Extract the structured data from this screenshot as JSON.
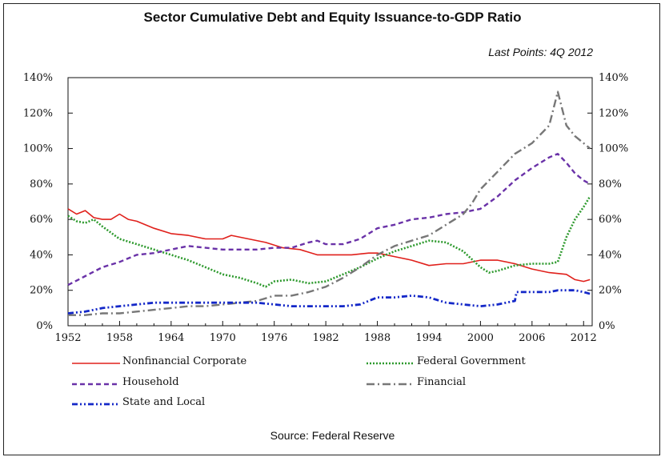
{
  "chart_data": {
    "type": "line",
    "title": "Sector Cumulative Debt and Equity Issuance-to-GDP Ratio",
    "subtitle": "Last Points: 4Q 2012",
    "source": "Source: Federal Reserve",
    "xlim": [
      1952,
      2013
    ],
    "ylim": [
      0,
      140
    ],
    "x_ticks": [
      "1952",
      "1958",
      "1964",
      "1970",
      "1976",
      "1982",
      "1988",
      "1994",
      "2000",
      "2006",
      "2012"
    ],
    "y_ticks": [
      "0%",
      "20%",
      "40%",
      "60%",
      "80%",
      "100%",
      "120%",
      "140%"
    ],
    "grid": false,
    "legend_position": "bottom",
    "series": [
      {
        "name": "Nonfinancial Corporate",
        "color": "#e0201b",
        "style": "solid",
        "x": [
          1952,
          1953,
          1954,
          1955,
          1956,
          1957,
          1958,
          1959,
          1960,
          1962,
          1964,
          1966,
          1968,
          1970,
          1971,
          1973,
          1975,
          1977,
          1979,
          1981,
          1983,
          1985,
          1987,
          1988,
          1990,
          1992,
          1994,
          1996,
          1998,
          2000,
          2002,
          2004,
          2006,
          2008,
          2010,
          2011,
          2012,
          2012.75
        ],
        "y": [
          66,
          63,
          65,
          61,
          60,
          60,
          63,
          60,
          59,
          55,
          52,
          51,
          49,
          49,
          51,
          49,
          47,
          44,
          43,
          40,
          40,
          40,
          41,
          41,
          39,
          37,
          34,
          35,
          35,
          37,
          37,
          35,
          32,
          30,
          29,
          26,
          25,
          26
        ]
      },
      {
        "name": "Federal Government",
        "color": "#2e9a2e",
        "style": "dotted",
        "x": [
          1952,
          1953,
          1954,
          1955,
          1956,
          1958,
          1960,
          1962,
          1964,
          1966,
          1968,
          1970,
          1972,
          1974,
          1975,
          1976,
          1978,
          1980,
          1982,
          1984,
          1986,
          1988,
          1990,
          1992,
          1994,
          1996,
          1998,
          2000,
          2001,
          2002,
          2004,
          2006,
          2008,
          2009,
          2010,
          2011,
          2012,
          2012.75
        ],
        "y": [
          62,
          59,
          58,
          60,
          56,
          49,
          46,
          43,
          40,
          37,
          33,
          29,
          27,
          24,
          22,
          25,
          26,
          24,
          25,
          29,
          33,
          38,
          42,
          45,
          48,
          47,
          42,
          33,
          30,
          31,
          34,
          35,
          35,
          36,
          50,
          60,
          67,
          73
        ]
      },
      {
        "name": "Household",
        "color": "#6a32a8",
        "style": "dashed",
        "x": [
          1952,
          1954,
          1956,
          1958,
          1960,
          1962,
          1964,
          1966,
          1968,
          1970,
          1972,
          1974,
          1976,
          1978,
          1980,
          1981,
          1982,
          1984,
          1986,
          1988,
          1990,
          1992,
          1994,
          1996,
          1998,
          2000,
          2002,
          2004,
          2006,
          2008,
          2009,
          2010,
          2011,
          2012,
          2012.75
        ],
        "y": [
          23,
          28,
          33,
          36,
          40,
          41,
          43,
          45,
          44,
          43,
          43,
          43,
          44,
          44,
          47,
          48,
          46,
          46,
          49,
          55,
          57,
          60,
          61,
          63,
          64,
          66,
          73,
          82,
          89,
          95,
          97,
          92,
          86,
          82,
          80
        ]
      },
      {
        "name": "Financial",
        "color": "#777777",
        "style": "dashdot",
        "x": [
          1952,
          1954,
          1956,
          1958,
          1960,
          1962,
          1964,
          1966,
          1968,
          1970,
          1972,
          1974,
          1976,
          1978,
          1980,
          1982,
          1984,
          1986,
          1988,
          1990,
          1992,
          1994,
          1996,
          1998,
          1999,
          2000,
          2002,
          2004,
          2006,
          2008,
          2009,
          2010,
          2011,
          2012,
          2012.75
        ],
        "y": [
          6,
          6,
          7,
          7,
          8,
          9,
          10,
          11,
          11,
          12,
          13,
          14,
          17,
          17,
          19,
          22,
          27,
          33,
          40,
          45,
          48,
          51,
          57,
          63,
          69,
          77,
          87,
          97,
          103,
          113,
          132,
          113,
          107,
          103,
          100
        ]
      },
      {
        "name": "State and Local",
        "color": "#1428c8",
        "style": "dashdotdot",
        "x": [
          1952,
          1954,
          1956,
          1958,
          1960,
          1962,
          1964,
          1966,
          1968,
          1970,
          1972,
          1974,
          1976,
          1978,
          1980,
          1982,
          1984,
          1986,
          1987,
          1988,
          1990,
          1992,
          1994,
          1996,
          1998,
          2000,
          2002,
          2003,
          2004,
          2004.2,
          2006,
          2008,
          2009,
          2010,
          2011,
          2012,
          2012.75
        ],
        "y": [
          7,
          8,
          10,
          11,
          12,
          13,
          13,
          13,
          13,
          13,
          13,
          13,
          12,
          11,
          11,
          11,
          11,
          12,
          14,
          16,
          16,
          17,
          16,
          13,
          12,
          11,
          12,
          13,
          14,
          19,
          19,
          19,
          20,
          20,
          20,
          19,
          18
        ]
      }
    ]
  }
}
